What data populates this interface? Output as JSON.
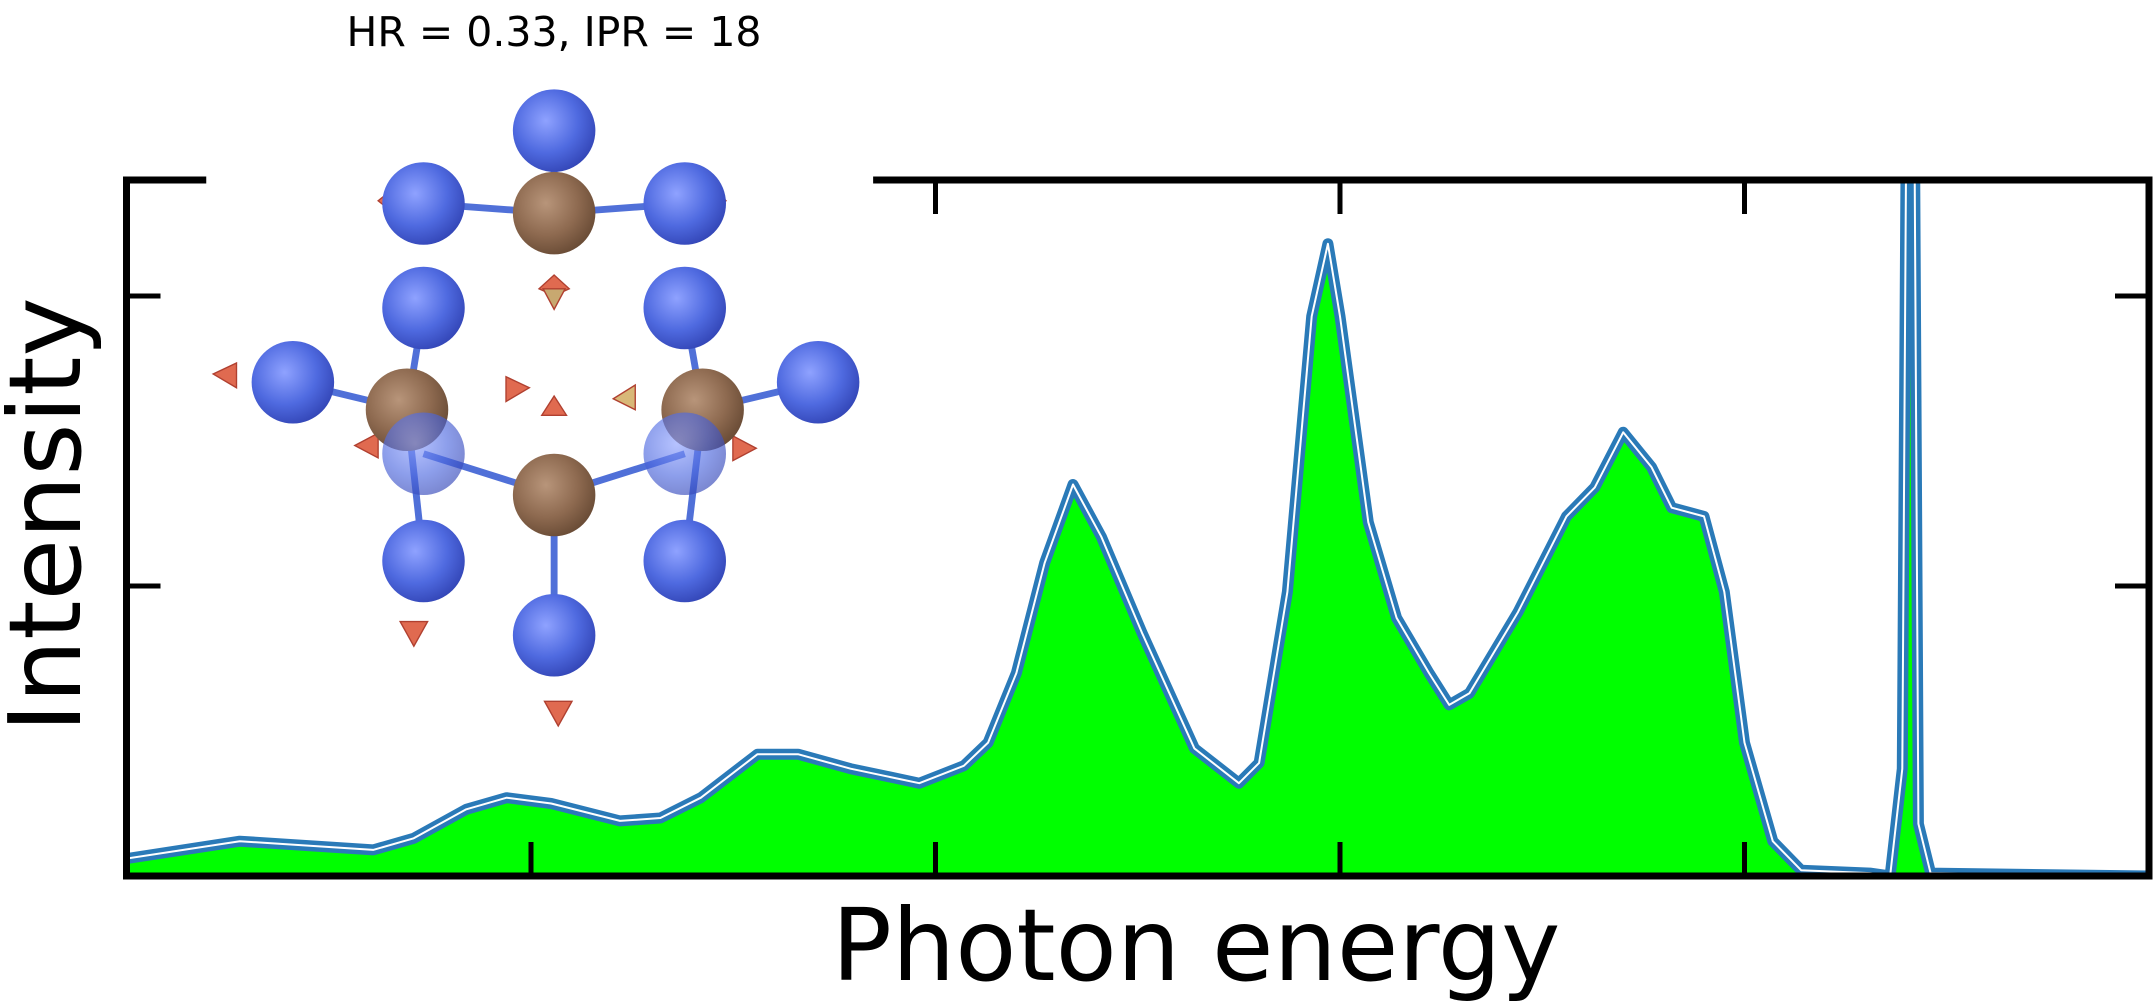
{
  "chart_data": {
    "type": "area",
    "title": "HR = 0.33, IPR = 18",
    "x_label": "Photon energy",
    "y_label": "Intensity",
    "x": [
      0,
      0.28,
      0.61,
      0.71,
      0.84,
      0.94,
      1.05,
      1.22,
      1.32,
      1.42,
      1.56,
      1.66,
      1.79,
      1.96,
      2.07,
      2.13,
      2.2,
      2.27,
      2.34,
      2.41,
      2.51,
      2.64,
      2.75,
      2.8,
      2.87,
      2.93,
      2.97,
      3.0,
      3.07,
      3.14,
      3.22,
      3.27,
      3.32,
      3.44,
      3.56,
      3.63,
      3.7,
      3.77,
      3.82,
      3.9,
      3.95,
      4.0,
      4.07,
      4.14,
      4.31,
      4.36,
      4.39,
      4.4,
      4.42,
      4.43,
      4.46,
      5.0
    ],
    "values": [
      0.06,
      0.12,
      0.09,
      0.13,
      0.23,
      0.27,
      0.25,
      0.19,
      0.2,
      0.27,
      0.42,
      0.42,
      0.37,
      0.32,
      0.38,
      0.46,
      0.7,
      1.08,
      1.35,
      1.17,
      0.84,
      0.44,
      0.32,
      0.39,
      0.98,
      1.93,
      2.18,
      1.93,
      1.22,
      0.89,
      0.7,
      0.59,
      0.63,
      0.91,
      1.24,
      1.34,
      1.53,
      1.41,
      1.27,
      1.24,
      0.98,
      0.46,
      0.12,
      0.02,
      0.01,
      0.0,
      0.37,
      2.6,
      2.6,
      0.18,
      0.01,
      0.0
    ],
    "color": "#2a7ab8",
    "fill_color": "#00ff00",
    "xlim": [
      0,
      5
    ],
    "xticks": [
      1,
      2,
      3,
      4
    ],
    "ylim": [
      0,
      2.4
    ],
    "yticks": [
      1,
      2
    ]
  }
}
